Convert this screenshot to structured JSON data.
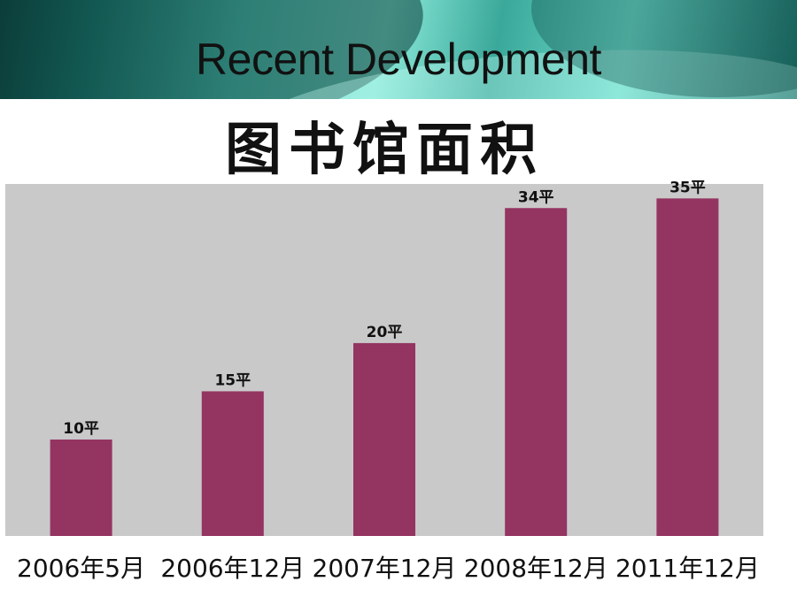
{
  "slide": {
    "title": "Recent Development"
  },
  "chart_data": {
    "type": "bar",
    "title": "图书馆面积",
    "categories": [
      "2006年5月",
      "2006年12月",
      "2007年12月",
      "2008年12月",
      "2011年12月"
    ],
    "values": [
      10,
      15,
      20,
      34,
      35
    ],
    "data_labels": [
      "10平",
      "15平",
      "20平",
      "34平",
      "35平"
    ],
    "ylim": [
      0,
      36.5
    ],
    "grid": false,
    "legend": "none",
    "colors": {
      "bar": "#943461",
      "plot_background": "#c9c9c9",
      "banner_accent": "#5ad0bf"
    }
  }
}
